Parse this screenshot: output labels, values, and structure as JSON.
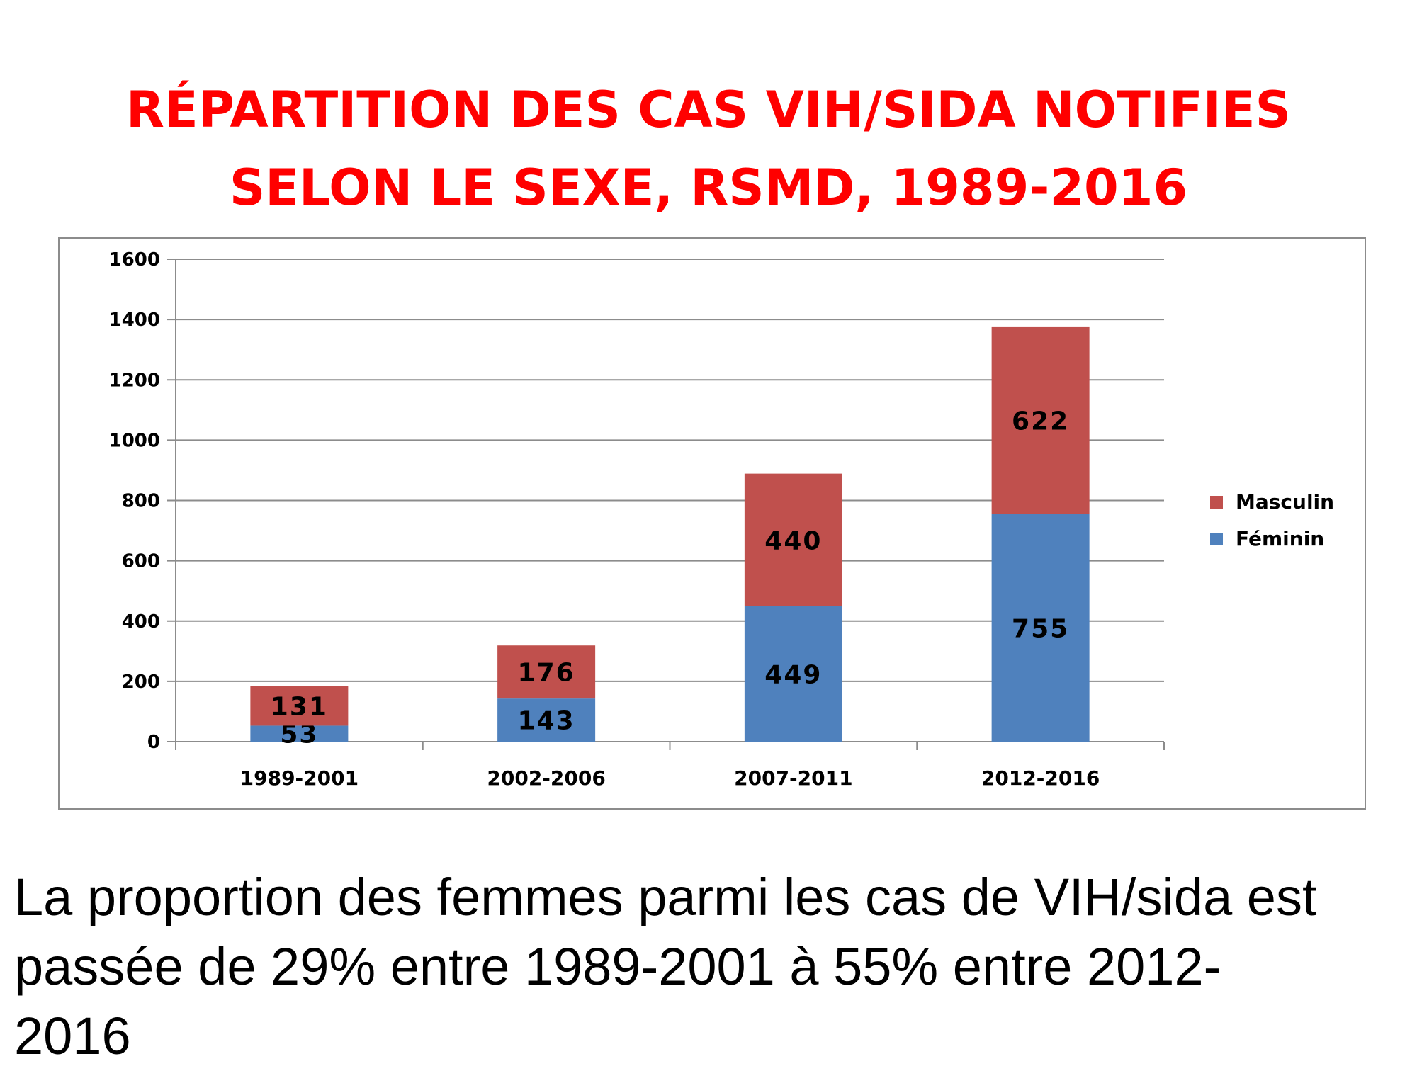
{
  "title": {
    "line1": "RÉPARTITION DES CAS VIH/SIDA NOTIFIES",
    "line2": "SELON LE SEXE, RSMD, 1989-2016"
  },
  "caption": {
    "line1": "La proportion des femmes parmi les cas de VIH/sida est",
    "line2": "passée de 29% entre 1989-2001 à 55% entre 2012-",
    "line3": "2016"
  },
  "colors": {
    "title": "#ff0000",
    "feminin": "#4f81bd",
    "masculin": "#c0504d",
    "grid": "#8c8c8c"
  },
  "chart_data": {
    "type": "bar",
    "stacked": true,
    "categories": [
      "1989-2001",
      "2002-2006",
      "2007-2011",
      "2012-2016"
    ],
    "series": [
      {
        "name": "Féminin",
        "values": [
          53,
          143,
          449,
          755
        ],
        "color": "#4f81bd"
      },
      {
        "name": "Masculin",
        "values": [
          131,
          176,
          440,
          622
        ],
        "color": "#c0504d"
      }
    ],
    "ylim": [
      0,
      1600
    ],
    "yticks": [
      0,
      200,
      400,
      600,
      800,
      1000,
      1200,
      1400,
      1600
    ],
    "grid": true,
    "legend_position": "right",
    "legend_order": [
      "Masculin",
      "Féminin"
    ],
    "data_labels": true
  }
}
